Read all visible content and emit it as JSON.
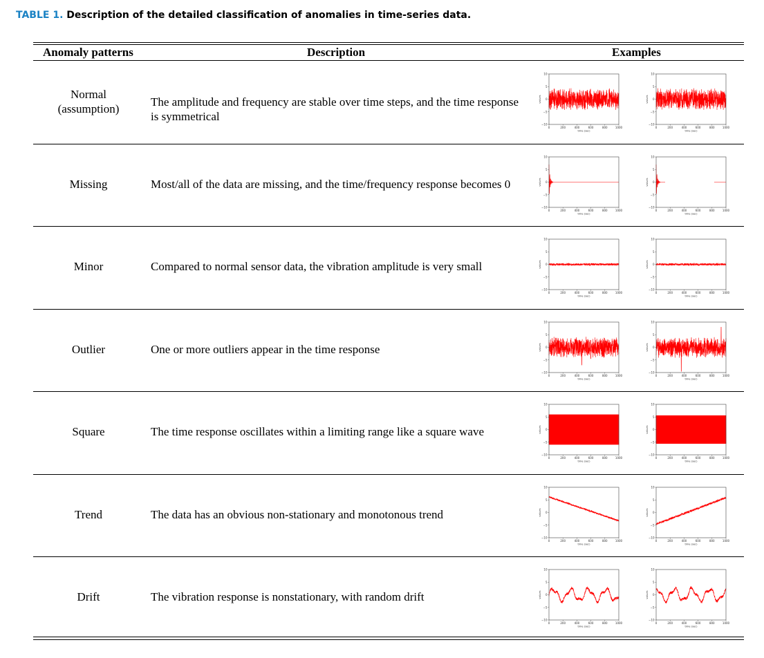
{
  "caption": {
    "label": "TABLE 1.",
    "text": "Description of the detailed classification of anomalies in time-series data."
  },
  "headers": {
    "pattern": "Anomaly patterns",
    "description": "Description",
    "examples": "Examples"
  },
  "plot_axes": {
    "x_ticks": [
      "0",
      "200",
      "400",
      "600",
      "800",
      "1000"
    ],
    "y_ticks": [
      "10",
      "5",
      "0",
      "−5",
      "−10"
    ],
    "xlabel": "time (sec)",
    "ylabel": "values",
    "line_color": "#ff0000"
  },
  "rows": [
    {
      "pattern_line1": "Normal",
      "pattern_line2": "(assumption)",
      "description": "The amplitude and frequency are stable over time steps, and the time response is symmetrical"
    },
    {
      "pattern_line1": "Missing",
      "pattern_line2": "",
      "description": "Most/all of the data are missing, and the time/frequency response becomes 0"
    },
    {
      "pattern_line1": "Minor",
      "pattern_line2": "",
      "description": "Compared to normal sensor data, the vibration amplitude is very small"
    },
    {
      "pattern_line1": "Outlier",
      "pattern_line2": "",
      "description": "One or more outliers appear in the time response"
    },
    {
      "pattern_line1": "Square",
      "pattern_line2": "",
      "description": "The time response oscillates within a limiting range like a square wave"
    },
    {
      "pattern_line1": "Trend",
      "pattern_line2": "",
      "description": "The data has an obvious non-stationary and monotonous trend"
    },
    {
      "pattern_line1": "Drift",
      "pattern_line2": "",
      "description": "The vibration response is nonstationary, with random drift"
    }
  ],
  "chart_data": [
    {
      "type": "line",
      "pattern": "Normal",
      "variant": 1,
      "ylim": [
        -10,
        10
      ],
      "xlim": [
        0,
        1000
      ]
    },
    {
      "type": "line",
      "pattern": "Normal",
      "variant": 2,
      "ylim": [
        -10,
        10
      ],
      "xlim": [
        0,
        1000
      ]
    },
    {
      "type": "line",
      "pattern": "Missing",
      "variant": 1,
      "ylim": [
        -10,
        10
      ],
      "xlim": [
        0,
        1000
      ]
    },
    {
      "type": "line",
      "pattern": "Missing",
      "variant": 2,
      "ylim": [
        -10,
        10
      ],
      "xlim": [
        0,
        1000
      ]
    },
    {
      "type": "line",
      "pattern": "Minor",
      "variant": 1,
      "ylim": [
        -10,
        10
      ],
      "xlim": [
        0,
        1000
      ]
    },
    {
      "type": "line",
      "pattern": "Minor",
      "variant": 2,
      "ylim": [
        -10,
        10
      ],
      "xlim": [
        0,
        1000
      ]
    },
    {
      "type": "line",
      "pattern": "Outlier",
      "variant": 1,
      "ylim": [
        -10,
        10
      ],
      "xlim": [
        0,
        1000
      ]
    },
    {
      "type": "line",
      "pattern": "Outlier",
      "variant": 2,
      "ylim": [
        -10,
        10
      ],
      "xlim": [
        0,
        1000
      ]
    },
    {
      "type": "line",
      "pattern": "Square",
      "variant": 1,
      "ylim": [
        -10,
        10
      ],
      "xlim": [
        0,
        1000
      ]
    },
    {
      "type": "line",
      "pattern": "Square",
      "variant": 2,
      "ylim": [
        -10,
        10
      ],
      "xlim": [
        0,
        1000
      ]
    },
    {
      "type": "line",
      "pattern": "Trend",
      "variant": 1,
      "ylim": [
        -10,
        10
      ],
      "xlim": [
        0,
        1000
      ]
    },
    {
      "type": "line",
      "pattern": "Trend",
      "variant": 2,
      "ylim": [
        -10,
        10
      ],
      "xlim": [
        0,
        1000
      ]
    },
    {
      "type": "line",
      "pattern": "Drift",
      "variant": 1,
      "ylim": [
        -10,
        10
      ],
      "xlim": [
        0,
        1000
      ]
    },
    {
      "type": "line",
      "pattern": "Drift",
      "variant": 2,
      "ylim": [
        -10,
        10
      ],
      "xlim": [
        0,
        1000
      ]
    }
  ]
}
